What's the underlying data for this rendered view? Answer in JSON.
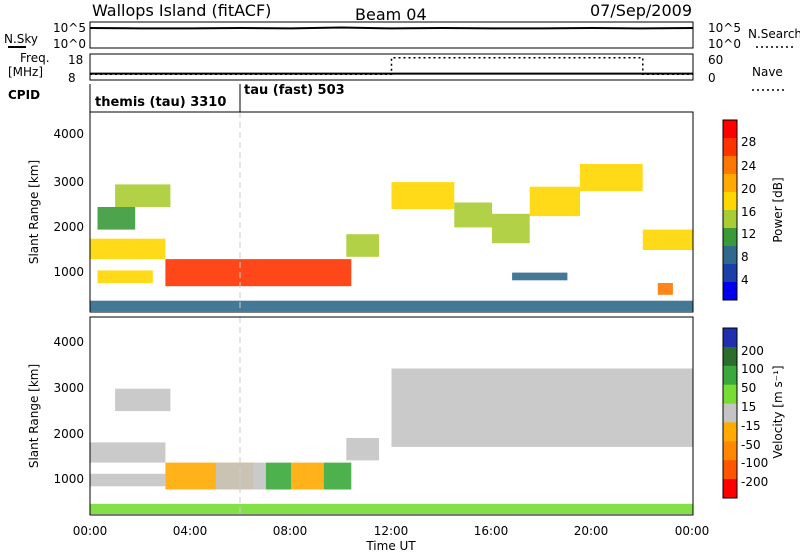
{
  "header": {
    "station": "Wallops Island (fitACF)",
    "beam": "Beam 04",
    "date": "07/Sep/2009"
  },
  "nsky_panel": {
    "left_label": "N.Sky",
    "left_ticks": [
      "10^5",
      "10^0"
    ],
    "right_ticks": [
      "10^5",
      "10^0"
    ],
    "right_label": "N.Search"
  },
  "freq_panel": {
    "left_label_line1": "Freq.",
    "left_label_line2": "[MHz]",
    "left_ticks": [
      "18",
      "8"
    ],
    "right_ticks": [
      "60",
      "0"
    ],
    "right_label": "Nave"
  },
  "cpid_panel": {
    "label": "CPID",
    "modes": [
      {
        "name": "themis (tau) 3310",
        "start_hour": 0
      },
      {
        "name": "tau (fast) 503",
        "start_hour": 6
      }
    ]
  },
  "axes": {
    "y_label": "Slant Range [km]",
    "y_ticks": [
      "4000",
      "3000",
      "2000",
      "1000"
    ],
    "x_ticks": [
      "00:00",
      "04:00",
      "08:00",
      "12:00",
      "16:00",
      "20:00",
      "00:00"
    ],
    "x_label": "Time UT"
  },
  "power_colorbar": {
    "title": "Power [dB]",
    "ticks": [
      "28",
      "24",
      "20",
      "16",
      "12",
      "8",
      "4"
    ],
    "colors": [
      "#ff0000",
      "#ff3300",
      "#ff7700",
      "#ffaa00",
      "#ffd600",
      "#aacc33",
      "#3a9a3a",
      "#2f6a8c",
      "#1a3fa6",
      "#0000ee"
    ]
  },
  "velocity_colorbar": {
    "title": "Velocity [m s⁻¹]",
    "ticks": [
      "200",
      "100",
      "50",
      "15",
      "-15",
      "-50",
      "-100",
      "-200"
    ],
    "colors": [
      "#1f2fb0",
      "#2b6e2b",
      "#3aa83a",
      "#77dd33",
      "#c4c4c4",
      "#ffaa00",
      "#ff8800",
      "#ff5500",
      "#ff0000"
    ]
  },
  "chart_data": [
    {
      "type": "line",
      "title": "N.Sky",
      "x": [
        0,
        2,
        4,
        6,
        8,
        10,
        12,
        14,
        16,
        18,
        20,
        22,
        24
      ],
      "y_log10": [
        4.1,
        4.0,
        4.0,
        4.1,
        4.0,
        4.2,
        4.0,
        4.1,
        4.0,
        4.0,
        4.1,
        4.0,
        4.1
      ],
      "ylim_log10": [
        0,
        5
      ]
    },
    {
      "type": "line",
      "title": "Freq.",
      "x": [
        0,
        6,
        12,
        22,
        24
      ],
      "freq_mhz": [
        10.0,
        10.0,
        10.0,
        10.0,
        10.0
      ],
      "nave": [
        10,
        10,
        55,
        10,
        10
      ],
      "ylim": [
        8,
        18
      ]
    },
    {
      "type": "heatmap",
      "title": "Power [dB]",
      "xlim_hours": [
        0,
        24
      ],
      "ylim_km": [
        180,
        4600
      ],
      "regions": [
        {
          "t0": 0.0,
          "t1": 3.0,
          "r0": 1350,
          "r1": 1800,
          "level": 16
        },
        {
          "t0": 0.3,
          "t1": 1.8,
          "r0": 2000,
          "r1": 2500,
          "level": 10
        },
        {
          "t0": 1.0,
          "t1": 3.2,
          "r0": 2500,
          "r1": 3000,
          "level": 14
        },
        {
          "t0": 3.0,
          "t1": 10.4,
          "r0": 750,
          "r1": 1350,
          "level": 26
        },
        {
          "t0": 0.3,
          "t1": 2.5,
          "r0": 820,
          "r1": 1100,
          "level": 18
        },
        {
          "t0": 10.2,
          "t1": 11.5,
          "r0": 1400,
          "r1": 1900,
          "level": 14
        },
        {
          "t0": 12.0,
          "t1": 14.5,
          "r0": 2450,
          "r1": 3050,
          "level": 17
        },
        {
          "t0": 14.5,
          "t1": 16.0,
          "r0": 2050,
          "r1": 2600,
          "level": 15
        },
        {
          "t0": 16.0,
          "t1": 17.5,
          "r0": 1700,
          "r1": 2350,
          "level": 14
        },
        {
          "t0": 17.5,
          "t1": 19.5,
          "r0": 2300,
          "r1": 2950,
          "level": 17
        },
        {
          "t0": 19.5,
          "t1": 22.0,
          "r0": 2850,
          "r1": 3450,
          "level": 17
        },
        {
          "t0": 22.0,
          "t1": 24.0,
          "r0": 1550,
          "r1": 2000,
          "level": 16
        },
        {
          "t0": 16.8,
          "t1": 19.0,
          "r0": 880,
          "r1": 1050,
          "level": 8
        },
        {
          "t0": 22.6,
          "t1": 23.2,
          "r0": 560,
          "r1": 820,
          "level": 24
        },
        {
          "t0": 0.0,
          "t1": 24.0,
          "r0": 200,
          "r1": 430,
          "level": 6
        }
      ]
    },
    {
      "type": "heatmap",
      "title": "Velocity [m s⁻¹]",
      "xlim_hours": [
        0,
        24
      ],
      "ylim_km": [
        180,
        4600
      ],
      "regions": [
        {
          "t0": 0.0,
          "t1": 3.0,
          "r0": 1350,
          "r1": 1800,
          "level": 0
        },
        {
          "t0": 1.0,
          "t1": 3.2,
          "r0": 2500,
          "r1": 3000,
          "level": 0
        },
        {
          "t0": 3.0,
          "t1": 6.5,
          "r0": 750,
          "r1": 1350,
          "level": -40
        },
        {
          "t0": 5.0,
          "t1": 7.0,
          "r0": 750,
          "r1": 1350,
          "level": 0
        },
        {
          "t0": 7.0,
          "t1": 8.0,
          "r0": 750,
          "r1": 1350,
          "level": 40
        },
        {
          "t0": 8.0,
          "t1": 9.3,
          "r0": 750,
          "r1": 1350,
          "level": -40
        },
        {
          "t0": 9.3,
          "t1": 10.4,
          "r0": 750,
          "r1": 1350,
          "level": 40
        },
        {
          "t0": 0.0,
          "t1": 3.0,
          "r0": 820,
          "r1": 1100,
          "level": 0
        },
        {
          "t0": 10.2,
          "t1": 11.5,
          "r0": 1400,
          "r1": 1900,
          "level": 0
        },
        {
          "t0": 12.0,
          "t1": 24.0,
          "r0": 1700,
          "r1": 3450,
          "level": 0
        },
        {
          "t0": 0.0,
          "t1": 24.0,
          "r0": 200,
          "r1": 430,
          "level": 20
        }
      ]
    }
  ]
}
